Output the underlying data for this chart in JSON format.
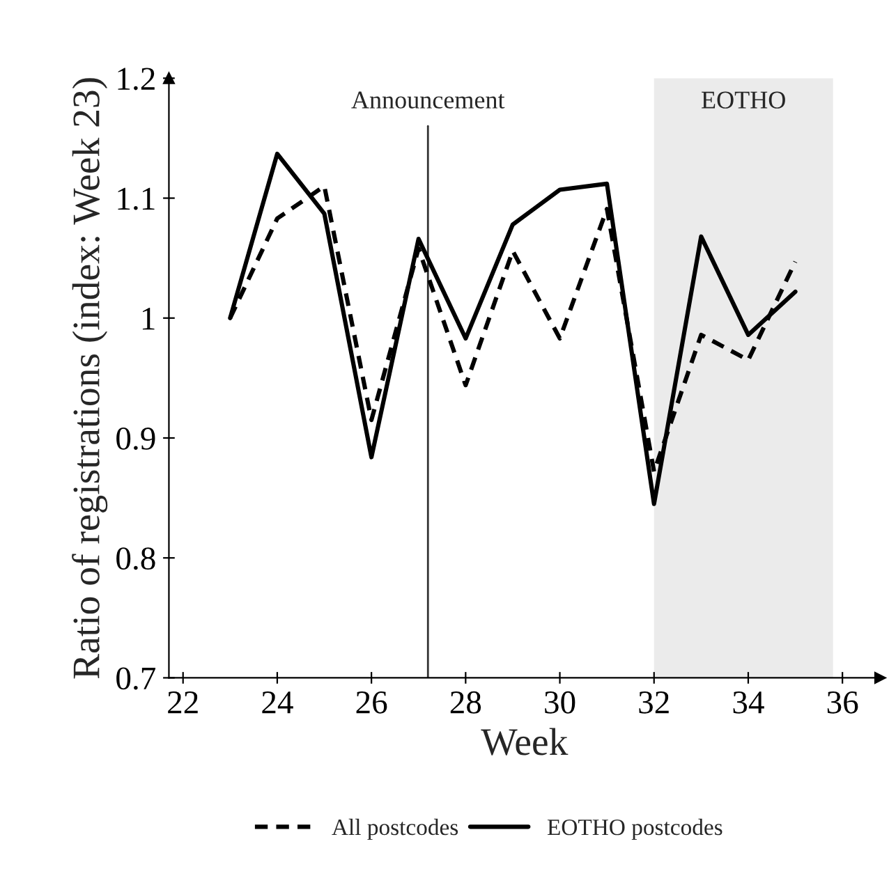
{
  "chart_data": {
    "type": "line",
    "xlabel": "Week",
    "ylabel": "Ratio of registrations (index: Week 23)",
    "x": [
      23,
      24,
      25,
      26,
      27,
      28,
      29,
      30,
      31,
      32,
      33,
      34,
      35
    ],
    "series": [
      {
        "name": "All postcodes",
        "color": "#000000",
        "line_style": "dashed",
        "values": [
          1.0,
          1.083,
          1.11,
          0.915,
          1.058,
          0.944,
          1.056,
          0.983,
          1.091,
          0.872,
          0.986,
          0.965,
          1.047
        ]
      },
      {
        "name": "EOTHO postcodes",
        "color": "#000000",
        "line_style": "solid",
        "values": [
          1.0,
          1.137,
          1.087,
          0.884,
          1.066,
          0.983,
          1.078,
          1.107,
          1.112,
          0.845,
          1.068,
          0.986,
          1.022
        ]
      }
    ],
    "xlim": [
      21.7,
      36.8
    ],
    "ylim": [
      0.7,
      1.2
    ],
    "xticks": [
      22,
      24,
      26,
      28,
      30,
      32,
      34,
      36
    ],
    "yticks": [
      {
        "value": 0.7,
        "label": "0.7"
      },
      {
        "value": 0.8,
        "label": "0.8"
      },
      {
        "value": 0.9,
        "label": "0.9"
      },
      {
        "value": 1,
        "label": "1"
      },
      {
        "value": 1.1,
        "label": "1.1"
      },
      {
        "value": 1.2,
        "label": "1.2"
      }
    ],
    "ref_lines": [
      {
        "axis": "x",
        "value": 27.2,
        "label": "Announcement",
        "color": "#333333"
      }
    ],
    "bands": [
      {
        "axis": "x",
        "from": 32,
        "to": 35.8,
        "label": "EOTHO",
        "color": "#ebebeb"
      }
    ],
    "grid": false,
    "legend": "bottom",
    "marker": "none"
  }
}
